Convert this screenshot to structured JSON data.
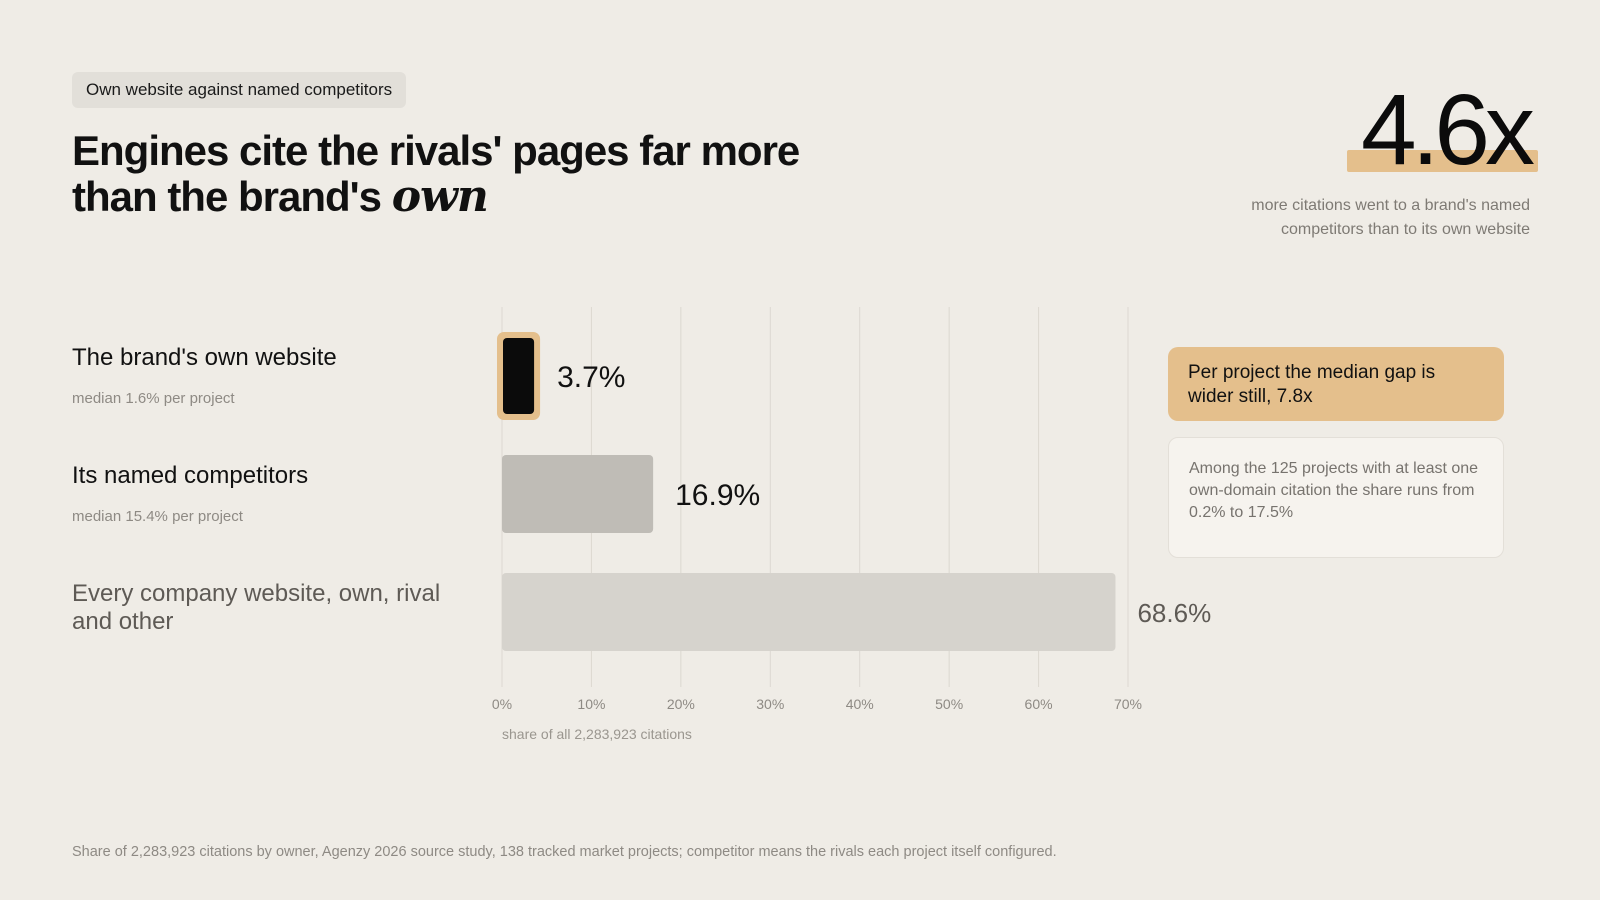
{
  "tag": "Own website against named competitors",
  "headline": {
    "main": "Engines cite the rivals' pages far more than the brand's ",
    "emphasis": "own"
  },
  "stat": {
    "value": "4.6x",
    "text": "more citations went to a brand's named competitors than to its own website",
    "highlight_color": "#e4bf8c"
  },
  "rows": [
    {
      "name": "The brand's own website",
      "median": "median 1.6% per project"
    },
    {
      "name": "Its named competitors",
      "median": "median 15.4% per project"
    },
    {
      "name": "Every company website, own, rival and other",
      "median": ""
    }
  ],
  "notes": {
    "accent": "Per project the median gap is wider still, 7.8x",
    "card": "Among the 125 projects with at least one own-domain citation the share runs from 0.2% to 17.5%"
  },
  "footnote": "Share of 2,283,923 citations by owner, Agenzy 2026 source study, 138 tracked market projects; competitor means the rivals each project itself configured.",
  "chart_data": {
    "type": "bar",
    "orientation": "horizontal",
    "categories": [
      "The brand's own website",
      "Its named competitors",
      "Every company website, own, rival and other"
    ],
    "values": [
      3.7,
      16.9,
      68.6
    ],
    "value_labels": [
      "3.7%",
      "16.9%",
      "68.6%"
    ],
    "xlim": [
      0,
      70
    ],
    "xticks": [
      0,
      10,
      20,
      30,
      40,
      50,
      60,
      70
    ],
    "xtick_labels": [
      "0%",
      "10%",
      "20%",
      "30%",
      "40%",
      "50%",
      "60%",
      "70%"
    ],
    "xlabel": "share of all 2,283,923 citations",
    "grid": true,
    "colors": [
      "#0b0b0b",
      "#bfbcb6",
      "#d6d3cd"
    ],
    "highlight_outline": "#e4bf8c"
  }
}
